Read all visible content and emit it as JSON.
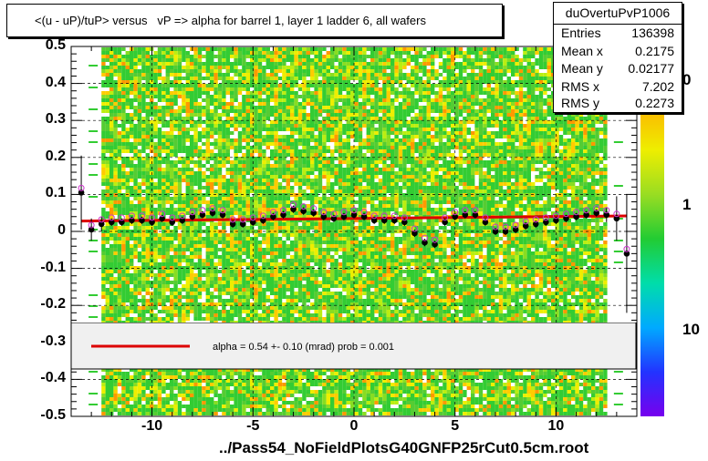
{
  "chart_data": {
    "type": "scatter",
    "title": "<(u - uP)/tuP> versus   vP => alpha for barrel 1, layer 1 ladder 6, all wafers",
    "xlabel": "../Pass54_NoFieldPlotsG40GNFP25rCut0.5cm.root",
    "ylabel": "",
    "xlim": [
      -14,
      14
    ],
    "ylim": [
      -0.5,
      0.5
    ],
    "x_ticks": [
      -10,
      -5,
      0,
      5,
      10
    ],
    "x_tick_labels": [
      "-10",
      "-5",
      "0",
      "5",
      "10"
    ],
    "y_ticks": [
      -0.5,
      -0.4,
      -0.3,
      -0.2,
      -0.1,
      0,
      0.1,
      0.2,
      0.3,
      0.4,
      0.5
    ],
    "y_tick_labels": [
      "-0.5",
      "-0.4",
      "-0.3",
      "-0.2",
      "-0.1",
      "0",
      "0.1",
      "0.2",
      "0.3",
      "0.4",
      "0.5"
    ],
    "grid": true,
    "profile_points": {
      "x": [
        -13.5,
        -13,
        -12.5,
        -12,
        -11.5,
        -11,
        -10.5,
        -10,
        -9.5,
        -9,
        -8.5,
        -8,
        -7.5,
        -7,
        -6.5,
        -6,
        -5.5,
        -5,
        -4.5,
        -4,
        -3.5,
        -3,
        -2.5,
        -2,
        -1.5,
        -1,
        -0.5,
        0,
        0.5,
        1,
        1.5,
        2,
        2.5,
        3,
        3.5,
        4,
        4.5,
        5,
        5.5,
        6,
        6.5,
        7,
        7.5,
        8,
        8.5,
        9,
        9.5,
        10,
        10.5,
        11,
        11.5,
        12,
        12.5,
        13,
        13.5
      ],
      "y": [
        0.105,
        0.005,
        0.02,
        0.025,
        0.025,
        0.03,
        0.03,
        0.025,
        0.035,
        0.025,
        0.03,
        0.04,
        0.045,
        0.05,
        0.045,
        0.02,
        0.02,
        0.025,
        0.03,
        0.04,
        0.045,
        0.06,
        0.055,
        0.05,
        0.04,
        0.035,
        0.04,
        0.045,
        0.04,
        0.03,
        0.03,
        0.03,
        0.025,
        -0.005,
        -0.03,
        -0.035,
        0.025,
        0.04,
        0.045,
        0.045,
        0.025,
        0.0,
        0.0,
        0.005,
        0.015,
        0.02,
        0.025,
        0.03,
        0.035,
        0.04,
        0.045,
        0.05,
        0.045,
        0.035,
        -0.06
      ],
      "yerr": [
        0.1,
        0.03,
        0.02,
        0.01,
        0.01,
        0.01,
        0.01,
        0.01,
        0.01,
        0.01,
        0.01,
        0.01,
        0.01,
        0.01,
        0.01,
        0.01,
        0.01,
        0.01,
        0.01,
        0.01,
        0.01,
        0.01,
        0.01,
        0.01,
        0.01,
        0.01,
        0.01,
        0.01,
        0.01,
        0.01,
        0.01,
        0.01,
        0.01,
        0.01,
        0.01,
        0.01,
        0.01,
        0.01,
        0.01,
        0.01,
        0.01,
        0.01,
        0.01,
        0.01,
        0.01,
        0.01,
        0.01,
        0.01,
        0.01,
        0.01,
        0.01,
        0.01,
        0.02,
        0.06,
        0.16
      ]
    },
    "fit_line": {
      "x": [
        -13.5,
        13.5
      ],
      "y": [
        0.028,
        0.042
      ],
      "color": "#dd0000"
    },
    "z_axis_labels": [
      "0",
      "1",
      "10"
    ],
    "colors": {
      "hist_base": "#33cc33",
      "hist_warm": "#ffcc00",
      "hist_hot": "#ff9900",
      "marker": "#000000",
      "open_marker": "#cc33cc"
    }
  },
  "stats": {
    "name": "duOvertuPvP1006",
    "rows": [
      {
        "label": "Entries",
        "value": "136398"
      },
      {
        "label": "Mean x",
        "value": "0.2175"
      },
      {
        "label": "Mean y",
        "value": "0.02177"
      },
      {
        "label": "RMS x",
        "value": "7.202"
      },
      {
        "label": "RMS y",
        "value": "0.2273"
      }
    ]
  },
  "legend": {
    "text": "alpha =    0.54 +-  0.10 (mrad) prob = 0.001",
    "line_color": "#dd0000"
  }
}
